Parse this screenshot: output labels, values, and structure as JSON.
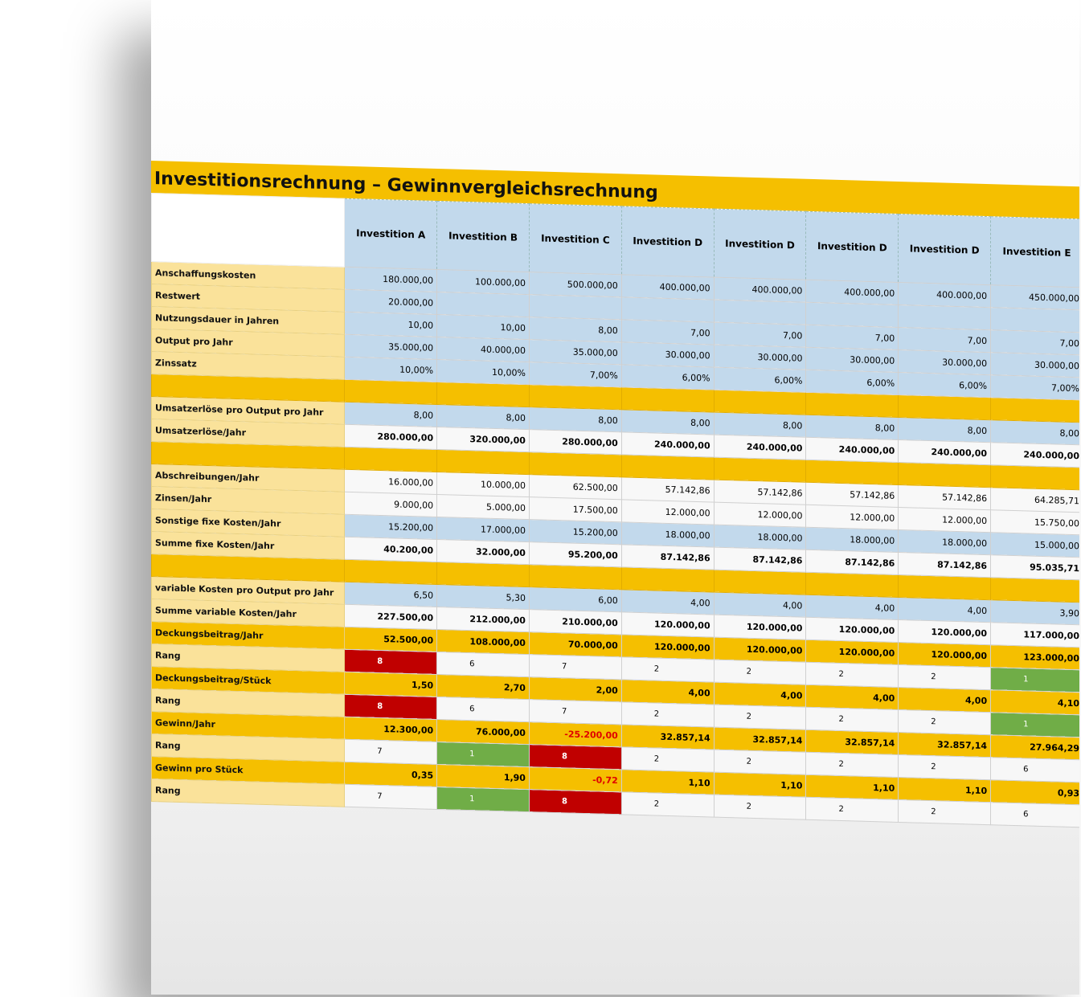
{
  "title": "Investitionsrechnung – Gewinnvergleichsrechnung",
  "table": {
    "columns": [
      "Investition A",
      "Investition B",
      "Investition C",
      "Investition D",
      "Investition D",
      "Investition D",
      "Investition D",
      "Investition E"
    ],
    "rows": [
      {
        "label": "Anschaffungskosten",
        "cells": [
          "180.000,00",
          "100.000,00",
          "500.000,00",
          "400.000,00",
          "400.000,00",
          "400.000,00",
          "400.000,00",
          "450.000,00"
        ]
      },
      {
        "label": "Restwert",
        "cells": [
          "20.000,00"
        ]
      },
      {
        "label": "Nutzungsdauer in Jahren",
        "cells": [
          "10,00",
          "10,00",
          "8,00",
          "7,00",
          "7,00",
          "7,00",
          "7,00",
          "7,00"
        ]
      },
      {
        "label": "Output pro Jahr",
        "cells": [
          "35.000,00",
          "40.000,00",
          "35.000,00",
          "30.000,00",
          "30.000,00",
          "30.000,00",
          "30.000,00",
          "30.000,00"
        ]
      },
      {
        "label": "Zinssatz",
        "cells": [
          "10,00%",
          "10,00%",
          "7,00%",
          "6,00%",
          "6,00%",
          "6,00%",
          "6,00%",
          "7,00%"
        ]
      },
      {
        "label": "Umsatzerlöse pro Output pro Jahr",
        "cells": [
          "8,00",
          "8,00",
          "8,00",
          "8,00",
          "8,00",
          "8,00",
          "8,00",
          "8,00"
        ]
      },
      {
        "label": "Umsatzerlöse/Jahr",
        "cells": [
          "280.000,00",
          "320.000,00",
          "280.000,00",
          "240.000,00",
          "240.000,00",
          "240.000,00",
          "240.000,00",
          "240.000,00"
        ]
      },
      {
        "label": "Abschreibungen/Jahr",
        "cells": [
          "16.000,00",
          "10.000,00",
          "62.500,00",
          "57.142,86",
          "57.142,86",
          "57.142,86",
          "57.142,86",
          "64.285,71"
        ]
      },
      {
        "label": "Zinsen/Jahr",
        "cells": [
          "9.000,00",
          "5.000,00",
          "17.500,00",
          "12.000,00",
          "12.000,00",
          "12.000,00",
          "12.000,00",
          "15.750,00"
        ]
      },
      {
        "label": "Sonstige fixe Kosten/Jahr",
        "cells": [
          "15.200,00",
          "17.000,00",
          "15.200,00",
          "18.000,00",
          "18.000,00",
          "18.000,00",
          "18.000,00",
          "15.000,00"
        ]
      },
      {
        "label": "Summe fixe Kosten/Jahr",
        "cells": [
          "40.200,00",
          "32.000,00",
          "95.200,00",
          "87.142,86",
          "87.142,86",
          "87.142,86",
          "87.142,86",
          "95.035,71"
        ]
      },
      {
        "label": "variable Kosten pro Output pro Jahr",
        "cells": [
          "6,50",
          "5,30",
          "6,00",
          "4,00",
          "4,00",
          "4,00",
          "4,00",
          "3,90"
        ]
      },
      {
        "label": "Summe variable Kosten/Jahr",
        "cells": [
          "227.500,00",
          "212.000,00",
          "210.000,00",
          "120.000,00",
          "120.000,00",
          "120.000,00",
          "120.000,00",
          "117.000,00"
        ]
      },
      {
        "label": "Deckungsbeitrag/Jahr",
        "cells": [
          "52.500,00",
          "108.000,00",
          "70.000,00",
          "120.000,00",
          "120.000,00",
          "120.000,00",
          "120.000,00",
          "123.000,00"
        ]
      },
      {
        "label": "Rang",
        "cells": [
          8,
          6,
          7,
          2,
          2,
          2,
          2,
          1
        ]
      },
      {
        "label": "Deckungsbeitrag/Stück",
        "cells": [
          "1,50",
          "2,70",
          "2,00",
          "4,00",
          "4,00",
          "4,00",
          "4,00",
          "4,10"
        ]
      },
      {
        "label": "Rang",
        "cells": [
          8,
          6,
          7,
          2,
          2,
          2,
          2,
          1
        ]
      },
      {
        "label": "Gewinn/Jahr",
        "cells": [
          "12.300,00",
          "76.000,00",
          "-25.200,00",
          "32.857,14",
          "32.857,14",
          "32.857,14",
          "32.857,14",
          "27.964,29"
        ]
      },
      {
        "label": "Rang",
        "cells": [
          7,
          1,
          8,
          2,
          2,
          2,
          2,
          6
        ]
      },
      {
        "label": "Gewinn pro Stück",
        "cells": [
          "0,35",
          "1,90",
          "-0,72",
          "1,10",
          "1,10",
          "1,10",
          "1,10",
          "0,93"
        ]
      },
      {
        "label": "Rang",
        "cells": [
          7,
          1,
          8,
          2,
          2,
          2,
          2,
          6
        ]
      }
    ]
  }
}
